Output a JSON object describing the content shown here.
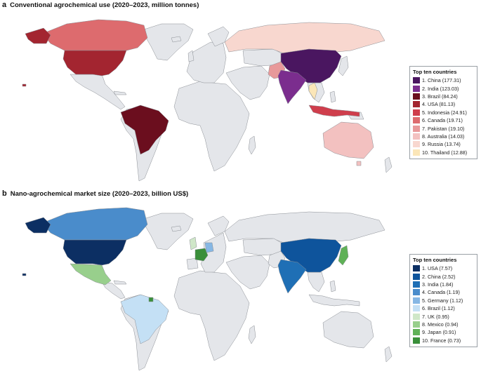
{
  "panel_a": {
    "letter": "a",
    "title": "Conventional agrochemical use (2020–2023, million tonnes)",
    "legend_title": "Top ten countries",
    "items": [
      {
        "label": "1. China (177.31)",
        "color": "#4a1660"
      },
      {
        "label": "2. India (123.03)",
        "color": "#7b2d8e"
      },
      {
        "label": "3. Brazil (84.24)",
        "color": "#6b0e1e"
      },
      {
        "label": "4. USA (81.13)",
        "color": "#a32530"
      },
      {
        "label": "5. Indonesia (24.91)",
        "color": "#cf3e4c"
      },
      {
        "label": "6. Canada (19.71)",
        "color": "#dd6b6e"
      },
      {
        "label": "7. Pakistan (19.10)",
        "color": "#e8999a"
      },
      {
        "label": "8. Australia (14.03)",
        "color": "#f3c1c0"
      },
      {
        "label": "9. Russia (13.74)",
        "color": "#f8d7cf"
      },
      {
        "label": "10. Thailand (12.88)",
        "color": "#fbe6b8"
      }
    ]
  },
  "panel_b": {
    "letter": "b",
    "title": "Nano-agrochemical market size (2020–2023, billion US$)",
    "legend_title": "Top ten countries",
    "items": [
      {
        "label": "1. USA (7.57)",
        "color": "#0c2f63"
      },
      {
        "label": "2. China (2.52)",
        "color": "#0e549c"
      },
      {
        "label": "3. India (1.84)",
        "color": "#1f6fb5"
      },
      {
        "label": "4. Canada (1.19)",
        "color": "#4a8ccb"
      },
      {
        "label": "5. Germany (1.12)",
        "color": "#86b7e4"
      },
      {
        "label": "6. Brazil (1.12)",
        "color": "#c4e0f5"
      },
      {
        "label": "7. UK (0.95)",
        "color": "#cfe7c8"
      },
      {
        "label": "8. Mexico (0.94)",
        "color": "#98cf8c"
      },
      {
        "label": "9. Japan (0.91)",
        "color": "#5fb157"
      },
      {
        "label": "10. France (0.73)",
        "color": "#3a8f3a"
      }
    ]
  },
  "base_land_color": "#e4e6ea",
  "border_color": "#8a8e94"
}
